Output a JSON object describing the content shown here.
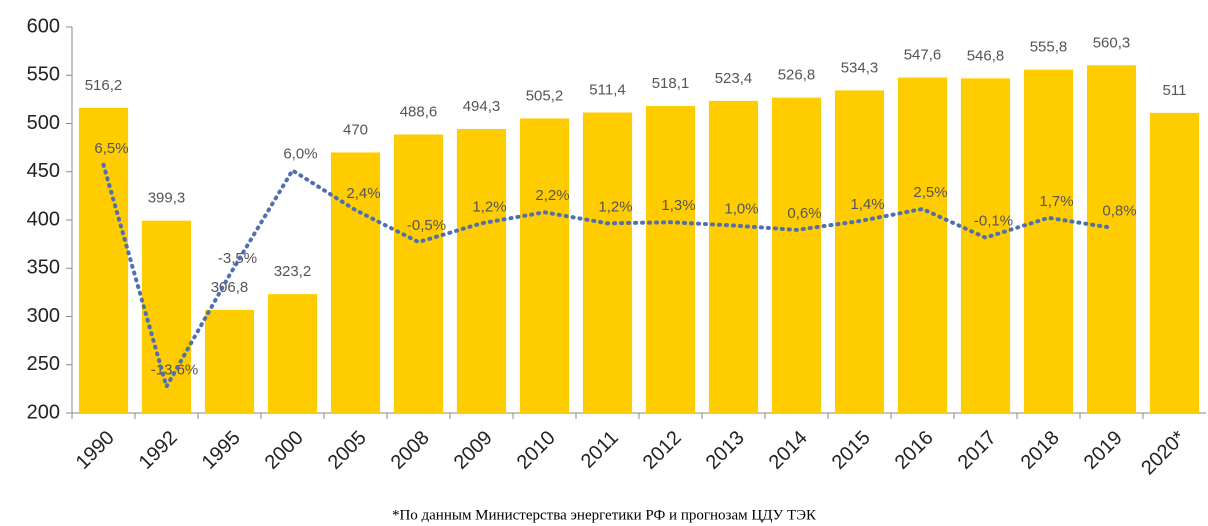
{
  "chart_data": {
    "type": "bar",
    "categories": [
      "1990",
      "1992",
      "1995",
      "2000",
      "2005",
      "2008",
      "2009",
      "2010",
      "2011",
      "2012",
      "2013",
      "2014",
      "2015",
      "2016",
      "2017",
      "2018",
      "2019",
      "2020*"
    ],
    "series": [
      {
        "type": "bar",
        "color": "#ffcc00",
        "values": [
          516.2,
          399.3,
          306.8,
          323.2,
          470,
          488.6,
          494.3,
          505.2,
          511.4,
          518.1,
          523.4,
          526.8,
          534.3,
          547.6,
          546.8,
          555.8,
          560.3,
          511
        ],
        "value_labels": [
          "516,2",
          "399,3",
          "306,8",
          "323,2",
          "470",
          "488,6",
          "494,3",
          "505,2",
          "511,4",
          "518,1",
          "523,4",
          "526,8",
          "534,3",
          "547,6",
          "546,8",
          "555,8",
          "560,3",
          "511"
        ]
      },
      {
        "type": "line",
        "color": "#4f6fb0",
        "axis": "y2",
        "values": [
          6.5,
          -13.6,
          -3.5,
          6.0,
          2.4,
          -0.5,
          1.2,
          2.2,
          1.2,
          1.3,
          1.0,
          0.6,
          1.4,
          2.5,
          -0.1,
          1.7,
          0.8,
          null
        ],
        "value_labels": [
          "6,5%",
          "-13,6%",
          "-3,5%",
          "6,0%",
          "2,4%",
          "-0,5%",
          "1,2%",
          "2,2%",
          "1,2%",
          "1,3%",
          "1,0%",
          "0,6%",
          "1,4%",
          "2,5%",
          "-0,1%",
          "1,7%",
          "0,8%",
          null
        ]
      }
    ],
    "ylim": [
      200,
      600
    ],
    "yticks": [
      200,
      250,
      300,
      350,
      400,
      450,
      500,
      550,
      600
    ],
    "y2lim": [
      -16,
      19
    ],
    "footnote": "*По данным Министерства энергетики РФ и прогнозам ЦДУ ТЭК"
  }
}
